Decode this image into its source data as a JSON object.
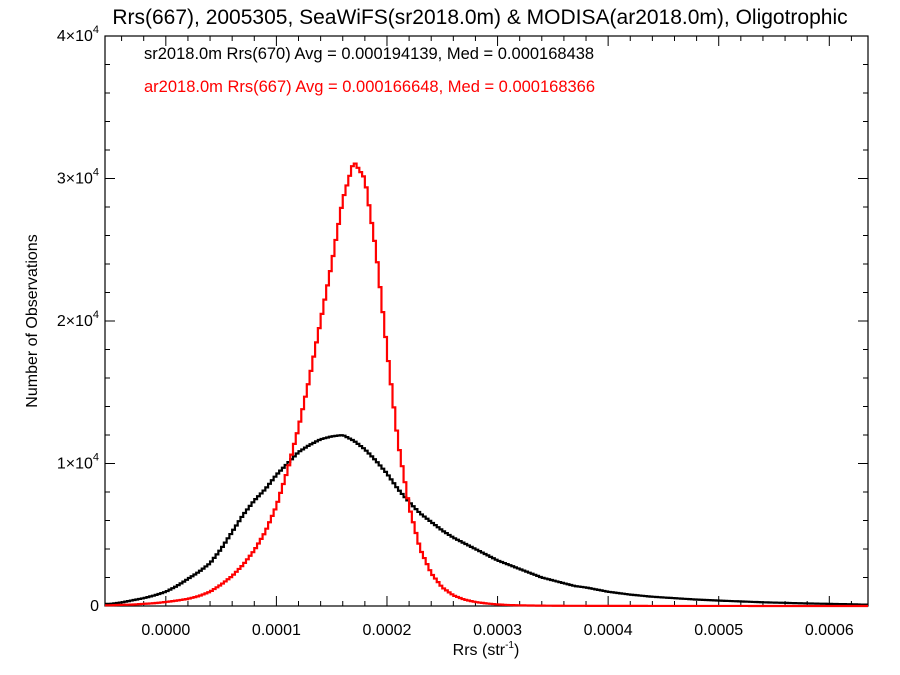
{
  "chart_data": {
    "type": "histogram",
    "title": "Rrs(667), 2005305, SeaWiFS(sr2018.0m) & MODISA(ar2018.0m), Oligotrophic",
    "xlabel_main": "Rrs (str",
    "xlabel_sup": "-1",
    "xlabel_tail": ")",
    "ylabel": "Number of Observations",
    "xlim": [
      -5.5e-05,
      0.000635
    ],
    "ylim": [
      0,
      40000
    ],
    "x_ticks": [
      0.0,
      0.0001,
      0.0002,
      0.0003,
      0.0004,
      0.0005,
      0.0006
    ],
    "x_tick_labels": [
      "0.0000",
      "0.0001",
      "0.0002",
      "0.0003",
      "0.0004",
      "0.0005",
      "0.0006"
    ],
    "y_ticks": [
      0,
      10000,
      20000,
      30000,
      40000
    ],
    "y_tick_labels": [
      {
        "base": "0",
        "exp": ""
      },
      {
        "base": "1×10",
        "exp": "4"
      },
      {
        "base": "2×10",
        "exp": "4"
      },
      {
        "base": "3×10",
        "exp": "4"
      },
      {
        "base": "4×10",
        "exp": "4"
      }
    ],
    "legend_position": "top-left",
    "series": [
      {
        "name": "sr2018.0m Rrs(670) Avg = 0.000194139, Med = 0.000168438",
        "color": "#000000",
        "points": [
          [
            -5e-05,
            150
          ],
          [
            -4e-05,
            250
          ],
          [
            -3e-05,
            400
          ],
          [
            -2e-05,
            550
          ],
          [
            -1e-05,
            750
          ],
          [
            0.0,
            1000
          ],
          [
            1e-05,
            1400
          ],
          [
            2e-05,
            1900
          ],
          [
            3e-05,
            2400
          ],
          [
            4e-05,
            3000
          ],
          [
            5e-05,
            4000
          ],
          [
            6e-05,
            5200
          ],
          [
            7e-05,
            6400
          ],
          [
            8e-05,
            7400
          ],
          [
            9e-05,
            8200
          ],
          [
            0.0001,
            9200
          ],
          [
            0.00011,
            10000
          ],
          [
            0.00012,
            10800
          ],
          [
            0.00013,
            11300
          ],
          [
            0.00014,
            11700
          ],
          [
            0.00015,
            11900
          ],
          [
            0.00016,
            12000
          ],
          [
            0.00017,
            11600
          ],
          [
            0.00018,
            11000
          ],
          [
            0.00019,
            10200
          ],
          [
            0.0002,
            9300
          ],
          [
            0.00021,
            8200
          ],
          [
            0.00022,
            7300
          ],
          [
            0.00023,
            6500
          ],
          [
            0.00024,
            5900
          ],
          [
            0.00025,
            5300
          ],
          [
            0.00026,
            4800
          ],
          [
            0.00027,
            4400
          ],
          [
            0.00028,
            4000
          ],
          [
            0.00029,
            3600
          ],
          [
            0.0003,
            3200
          ],
          [
            0.00031,
            2900
          ],
          [
            0.00032,
            2600
          ],
          [
            0.00033,
            2300
          ],
          [
            0.00034,
            2000
          ],
          [
            0.00035,
            1800
          ],
          [
            0.00036,
            1600
          ],
          [
            0.00037,
            1400
          ],
          [
            0.00038,
            1300
          ],
          [
            0.00039,
            1150
          ],
          [
            0.0004,
            1000
          ],
          [
            0.00042,
            800
          ],
          [
            0.00044,
            650
          ],
          [
            0.00046,
            550
          ],
          [
            0.00048,
            450
          ],
          [
            0.0005,
            380
          ],
          [
            0.00052,
            320
          ],
          [
            0.00054,
            260
          ],
          [
            0.00056,
            220
          ],
          [
            0.00058,
            180
          ],
          [
            0.0006,
            150
          ],
          [
            0.00062,
            120
          ],
          [
            0.00063,
            100
          ]
        ]
      },
      {
        "name": "ar2018.0m Rrs(667) Avg = 0.000166648, Med = 0.000168366",
        "color": "#ff0000",
        "points": [
          [
            -5e-05,
            50
          ],
          [
            -4e-05,
            80
          ],
          [
            -3e-05,
            100
          ],
          [
            -2e-05,
            150
          ],
          [
            -1e-05,
            200
          ],
          [
            0.0,
            280
          ],
          [
            1e-05,
            380
          ],
          [
            2e-05,
            500
          ],
          [
            3e-05,
            700
          ],
          [
            4e-05,
            1000
          ],
          [
            5e-05,
            1500
          ],
          [
            6e-05,
            2100
          ],
          [
            7e-05,
            2900
          ],
          [
            8e-05,
            3900
          ],
          [
            9e-05,
            5200
          ],
          [
            0.0001,
            7000
          ],
          [
            0.00011,
            9500
          ],
          [
            0.00012,
            12500
          ],
          [
            0.00013,
            16000
          ],
          [
            0.00014,
            20000
          ],
          [
            0.00015,
            24000
          ],
          [
            0.00016,
            28500
          ],
          [
            0.00017,
            31200
          ],
          [
            0.00018,
            30000
          ],
          [
            0.00019,
            25000
          ],
          [
            0.0002,
            18000
          ],
          [
            0.00021,
            11500
          ],
          [
            0.00022,
            7000
          ],
          [
            0.00023,
            4000
          ],
          [
            0.00024,
            2300
          ],
          [
            0.00025,
            1300
          ],
          [
            0.00026,
            750
          ],
          [
            0.00027,
            450
          ],
          [
            0.00028,
            280
          ],
          [
            0.00029,
            180
          ],
          [
            0.0003,
            110
          ],
          [
            0.00031,
            70
          ],
          [
            0.00032,
            45
          ],
          [
            0.00034,
            25
          ],
          [
            0.00036,
            15
          ],
          [
            0.0004,
            8
          ],
          [
            0.00045,
            5
          ],
          [
            0.0005,
            3
          ],
          [
            0.00055,
            2
          ],
          [
            0.0006,
            1
          ],
          [
            0.00063,
            1
          ]
        ]
      }
    ]
  }
}
